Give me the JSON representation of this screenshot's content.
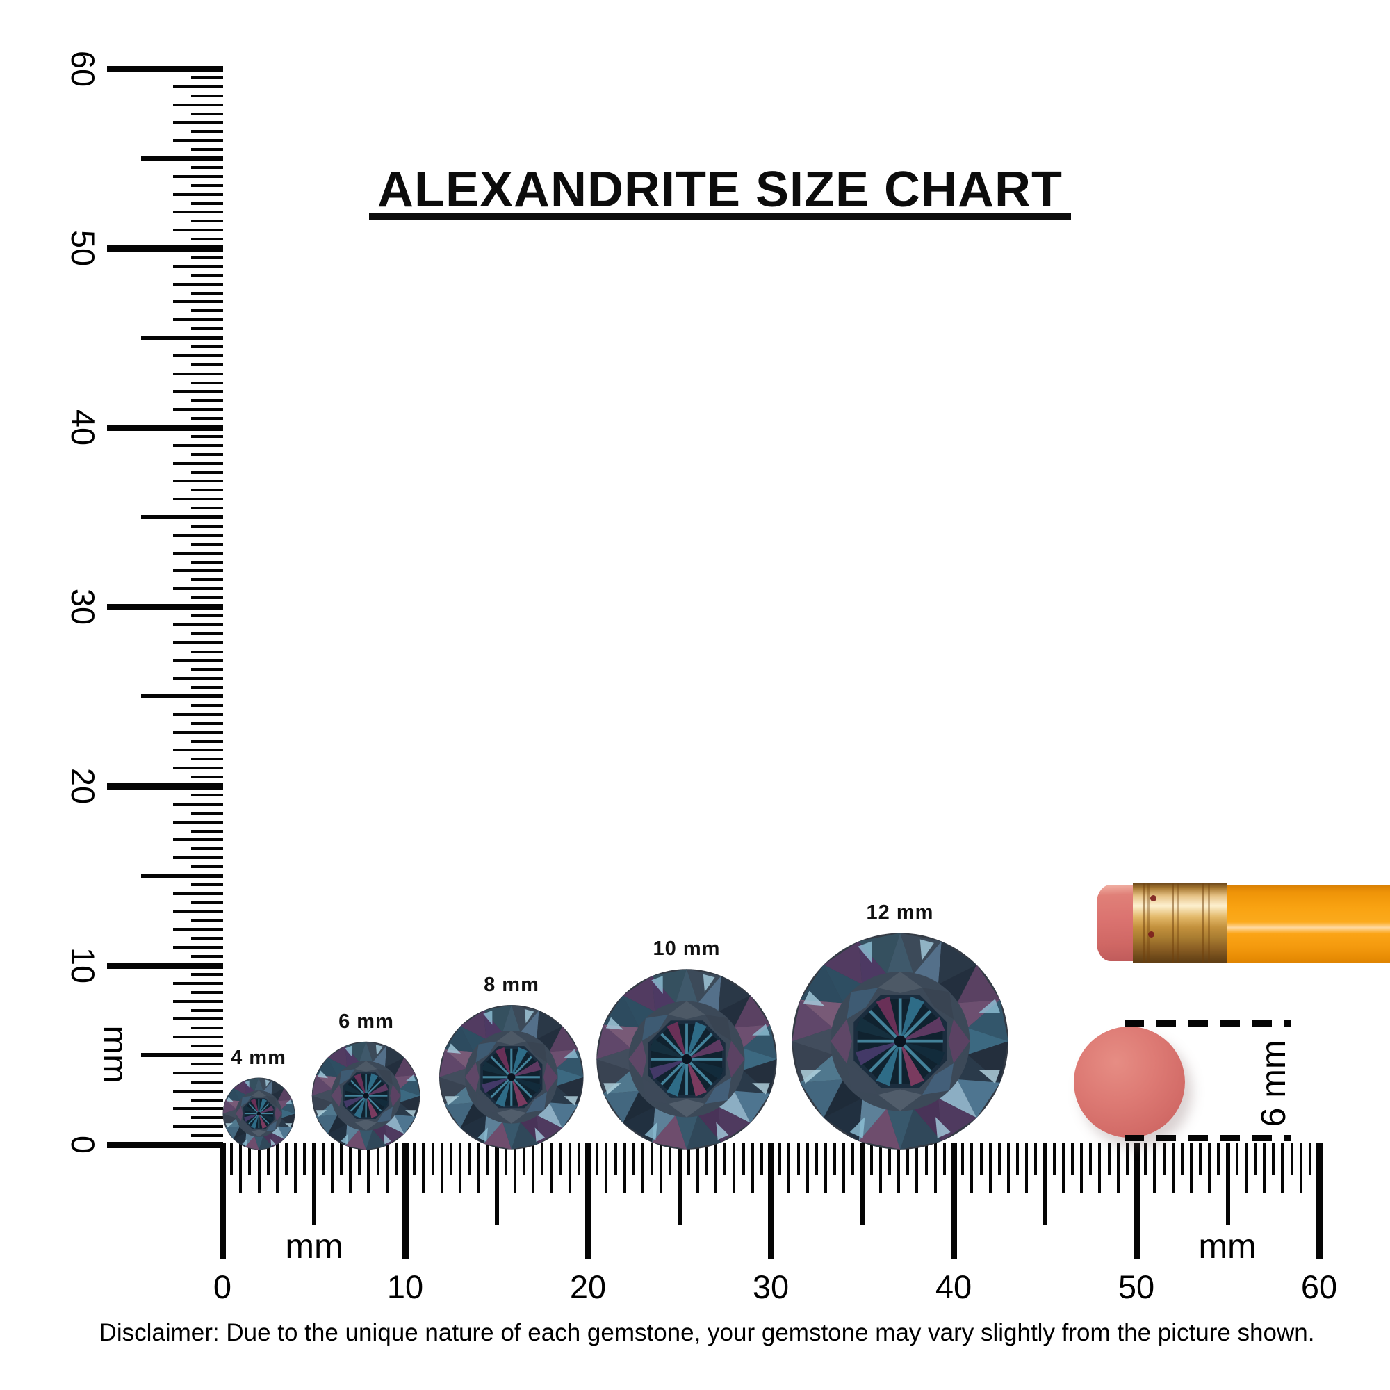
{
  "title": "ALEXANDRITE SIZE CHART",
  "disclaimer": "Disclaimer: Due to the unique nature of each gemstone, your gemstone may vary slightly from the picture shown.",
  "left_ruler": {
    "unit": "mm",
    "min_mm": 0,
    "max_mm": 60,
    "tick_step_mm": 0.5,
    "major_every_mm": 10,
    "labels": [
      "0",
      "10",
      "20",
      "30",
      "40",
      "50",
      "60"
    ]
  },
  "bottom_ruler": {
    "unit_left": "mm",
    "unit_right": "mm",
    "min_mm": 0,
    "max_mm": 60,
    "tick_step_mm": 0.5,
    "major_every_mm": 10,
    "labels": [
      "0",
      "10",
      "20",
      "30",
      "40",
      "50",
      "60"
    ]
  },
  "gems": [
    {
      "label": "4 mm",
      "mm": 4
    },
    {
      "label": "6 mm",
      "mm": 6
    },
    {
      "label": "8 mm",
      "mm": 8
    },
    {
      "label": "10 mm",
      "mm": 10
    },
    {
      "label": "12 mm",
      "mm": 12
    }
  ],
  "eraser_comparison": {
    "label": "6 mm",
    "mm": 6
  },
  "colors": {
    "ink": "#050505",
    "gem": {
      "rim": "#343b45",
      "ring": "#3c4958",
      "girdle_a": [
        "#3c4a59",
        "#2a3847",
        "#5a4162",
        "#33566b",
        "#242f3d",
        "#4e7590",
        "#4f3a5f",
        "#30485a",
        "#6e4d6d",
        "#213040",
        "#43677f",
        "#394352",
        "#60476a",
        "#2d4b5f",
        "#523b61",
        "#35505f"
      ],
      "girdle_b": [
        "#54708a",
        "#232f3e",
        "#6d4f70",
        "#3c6981",
        "#2a3a4a",
        "#8caec3",
        "#493358",
        "#38586c",
        "#5d8098",
        "#1e2b39",
        "#50788e",
        "#424d5d",
        "#785a77",
        "#2e4e62",
        "#4d3963",
        "#3f596b"
      ],
      "kites": [
        "#4d5966",
        "#394452",
        "#5b4263",
        "#435f79",
        "#515d6b",
        "#3d4959",
        "#5f4767",
        "#3e5b73"
      ],
      "table_edge": "#1b2d3e",
      "table": "#10222f",
      "star": [
        "#2e6c87",
        "#5d3961",
        "#122b3b",
        "#7a3b5f",
        "#2e6c87",
        "#433967",
        "#152f3e",
        "#693057"
      ],
      "bright_ray": "#4c93ad",
      "center": "#0a1420",
      "glints": [
        "#a5cdde",
        "#8fc0d6",
        "#b7d8e4"
      ]
    },
    "pencil": {
      "eraser": "#db7370",
      "ferrule_light": "#fdf0cf",
      "ferrule_mid": "#c3913d",
      "ferrule_dark": "#6f4a1c",
      "body": "#f9a312",
      "body_highlight": "#ffd9a0",
      "dot": "#7a1d1d"
    },
    "eraser_dot": {
      "main": "#dd7a74",
      "light": "#e68d84",
      "edge": "#c35e5b"
    }
  }
}
